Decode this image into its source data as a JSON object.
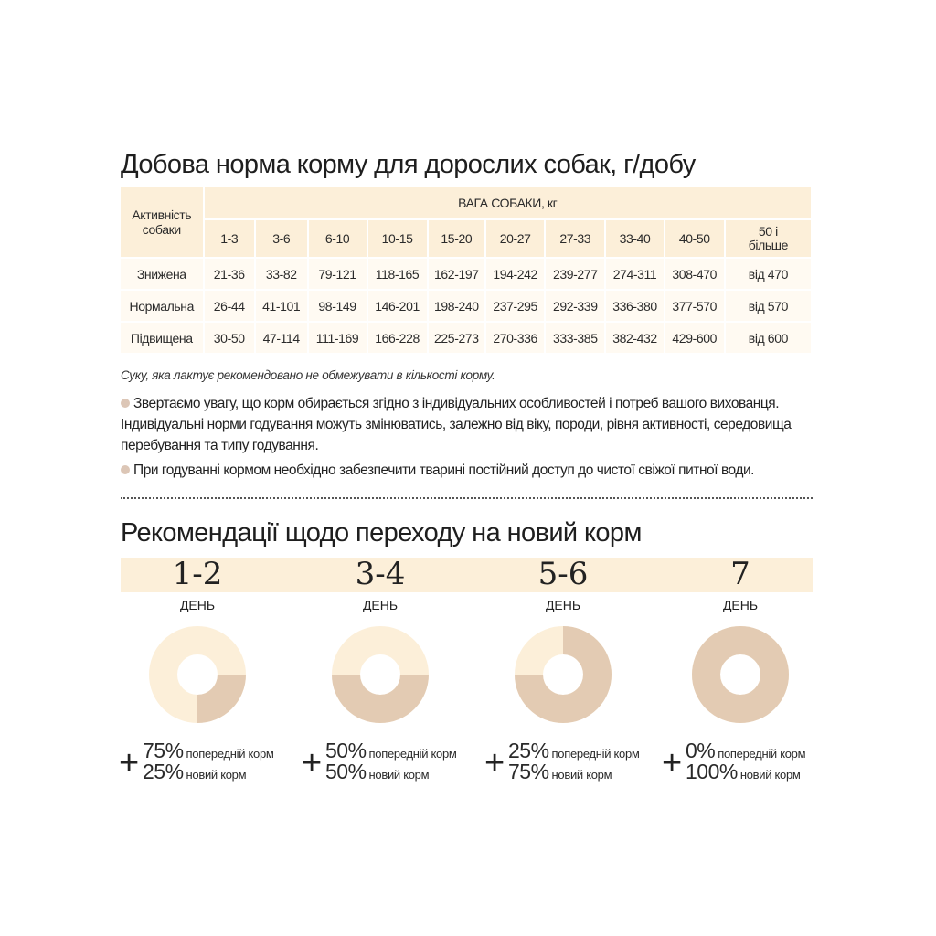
{
  "feeding": {
    "title": "Добова норма корму для дорослих собак, г/добу",
    "activity_header": "Активність собаки",
    "weight_header": "ВАГА СОБАКИ, кг",
    "weights": [
      "1-3",
      "3-6",
      "6-10",
      "10-15",
      "15-20",
      "20-27",
      "27-33",
      "33-40",
      "40-50",
      "50 і більше"
    ],
    "rows": [
      {
        "label": "Знижена",
        "values": [
          "21-36",
          "33-82",
          "79-121",
          "118-165",
          "162-197",
          "194-242",
          "239-277",
          "274-311",
          "308-470",
          "від 470"
        ]
      },
      {
        "label": "Нормальна",
        "values": [
          "26-44",
          "41-101",
          "98-149",
          "146-201",
          "198-240",
          "237-295",
          "292-339",
          "336-380",
          "377-570",
          "від 570"
        ]
      },
      {
        "label": "Підвищена",
        "values": [
          "30-50",
          "47-114",
          "111-169",
          "166-228",
          "225-273",
          "270-336",
          "333-385",
          "382-432",
          "429-600",
          "від 600"
        ]
      }
    ],
    "note": "Суку, яка лактує рекомендовано не обмежувати в кількості корму.",
    "bullets": [
      "Звертаємо увагу, що корм обирається згідно з індивідуальних особливостей і потреб вашого вихованця. Індивідуальні норми годування можуть змінюватись, залежно від віку, породи, рівня активності, середовища перебування та типу годування.",
      "При годуванні кормом необхідно забезпечити тварині постійний доступ до чистої свіжої питної води."
    ]
  },
  "transition": {
    "title": "Рекомендації щодо переходу на новий корм",
    "day_label": "ДЕНЬ",
    "old_label": "попередній корм",
    "new_label": "новий корм",
    "colors": {
      "old": "#fcefd9",
      "new": "#e3cbb3"
    },
    "steps": [
      {
        "days": "1-2",
        "old": "75%",
        "new": "25%",
        "new_fraction": 0.25
      },
      {
        "days": "3-4",
        "old": "50%",
        "new": "50%",
        "new_fraction": 0.5
      },
      {
        "days": "5-6",
        "old": "25%",
        "new": "75%",
        "new_fraction": 0.75
      },
      {
        "days": "7",
        "old": "0%",
        "new": "100%",
        "new_fraction": 1.0
      }
    ]
  }
}
